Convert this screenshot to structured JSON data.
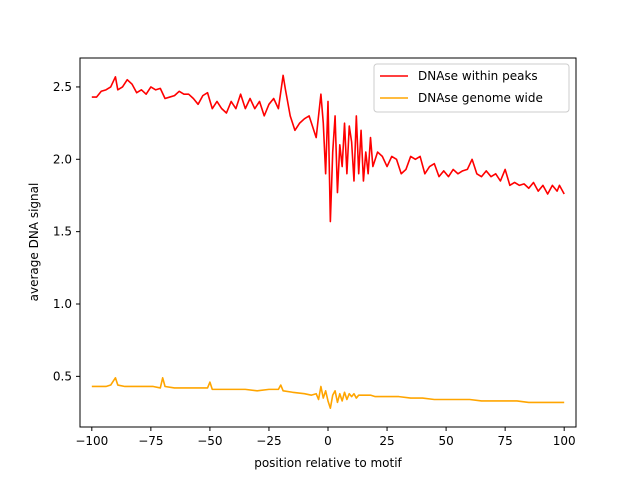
{
  "chart_data": {
    "type": "line",
    "title": "",
    "xlabel": "position relative to motif",
    "ylabel": "average DNA signal",
    "xlim": [
      -105,
      105
    ],
    "ylim": [
      0.15,
      2.7
    ],
    "xticks": [
      -100,
      -75,
      -50,
      -25,
      0,
      25,
      50,
      75,
      100
    ],
    "yticks": [
      0.5,
      1.0,
      1.5,
      2.0,
      2.5
    ],
    "xtick_labels": [
      "−100",
      "−75",
      "−50",
      "−25",
      "0",
      "25",
      "50",
      "75",
      "100"
    ],
    "ytick_labels": [
      "0.5",
      "1.0",
      "1.5",
      "2.0",
      "2.5"
    ],
    "grid": false,
    "legend_position": "top-right",
    "series": [
      {
        "name": "DNAse within peaks",
        "color": "#ff0000",
        "points": [
          [
            -100,
            2.43
          ],
          [
            -98,
            2.43
          ],
          [
            -96,
            2.47
          ],
          [
            -94,
            2.48
          ],
          [
            -92,
            2.5
          ],
          [
            -90,
            2.57
          ],
          [
            -89,
            2.48
          ],
          [
            -87,
            2.5
          ],
          [
            -85,
            2.55
          ],
          [
            -83,
            2.52
          ],
          [
            -81,
            2.46
          ],
          [
            -79,
            2.48
          ],
          [
            -77,
            2.45
          ],
          [
            -75,
            2.5
          ],
          [
            -73,
            2.48
          ],
          [
            -71,
            2.49
          ],
          [
            -69,
            2.42
          ],
          [
            -67,
            2.43
          ],
          [
            -65,
            2.44
          ],
          [
            -63,
            2.47
          ],
          [
            -61,
            2.45
          ],
          [
            -59,
            2.45
          ],
          [
            -57,
            2.42
          ],
          [
            -55,
            2.38
          ],
          [
            -53,
            2.44
          ],
          [
            -51,
            2.46
          ],
          [
            -49,
            2.35
          ],
          [
            -47,
            2.4
          ],
          [
            -45,
            2.35
          ],
          [
            -43,
            2.32
          ],
          [
            -41,
            2.4
          ],
          [
            -39,
            2.35
          ],
          [
            -37,
            2.45
          ],
          [
            -35,
            2.35
          ],
          [
            -33,
            2.42
          ],
          [
            -31,
            2.35
          ],
          [
            -29,
            2.4
          ],
          [
            -27,
            2.3
          ],
          [
            -25,
            2.38
          ],
          [
            -23,
            2.42
          ],
          [
            -21,
            2.35
          ],
          [
            -19,
            2.58
          ],
          [
            -18,
            2.48
          ],
          [
            -16,
            2.3
          ],
          [
            -14,
            2.2
          ],
          [
            -12,
            2.25
          ],
          [
            -10,
            2.28
          ],
          [
            -8,
            2.3
          ],
          [
            -6,
            2.2
          ],
          [
            -5,
            2.15
          ],
          [
            -3,
            2.45
          ],
          [
            -2,
            2.25
          ],
          [
            -1,
            1.9
          ],
          [
            0,
            2.4
          ],
          [
            1,
            1.57
          ],
          [
            2,
            2.05
          ],
          [
            3,
            2.3
          ],
          [
            4,
            1.77
          ],
          [
            5,
            2.1
          ],
          [
            6,
            1.95
          ],
          [
            7,
            2.25
          ],
          [
            8,
            1.9
          ],
          [
            9,
            2.23
          ],
          [
            10,
            2.12
          ],
          [
            11,
            1.85
          ],
          [
            12,
            2.3
          ],
          [
            13,
            1.9
          ],
          [
            14,
            2.2
          ],
          [
            15,
            1.85
          ],
          [
            16,
            2.05
          ],
          [
            17,
            1.9
          ],
          [
            18,
            2.15
          ],
          [
            19,
            1.95
          ],
          [
            21,
            2.05
          ],
          [
            23,
            2.02
          ],
          [
            25,
            1.95
          ],
          [
            27,
            2.02
          ],
          [
            29,
            2.0
          ],
          [
            31,
            1.9
          ],
          [
            33,
            1.93
          ],
          [
            35,
            2.02
          ],
          [
            37,
            2.0
          ],
          [
            39,
            2.02
          ],
          [
            41,
            1.9
          ],
          [
            43,
            1.95
          ],
          [
            45,
            1.97
          ],
          [
            47,
            1.88
          ],
          [
            49,
            1.92
          ],
          [
            51,
            1.88
          ],
          [
            53,
            1.93
          ],
          [
            55,
            1.9
          ],
          [
            57,
            1.92
          ],
          [
            59,
            1.93
          ],
          [
            61,
            2.0
          ],
          [
            63,
            1.9
          ],
          [
            65,
            1.88
          ],
          [
            67,
            1.92
          ],
          [
            69,
            1.88
          ],
          [
            71,
            1.9
          ],
          [
            73,
            1.85
          ],
          [
            75,
            1.93
          ],
          [
            77,
            1.82
          ],
          [
            79,
            1.84
          ],
          [
            81,
            1.82
          ],
          [
            83,
            1.83
          ],
          [
            85,
            1.8
          ],
          [
            87,
            1.84
          ],
          [
            89,
            1.78
          ],
          [
            91,
            1.82
          ],
          [
            93,
            1.76
          ],
          [
            95,
            1.82
          ],
          [
            97,
            1.78
          ],
          [
            98,
            1.82
          ],
          [
            100,
            1.76
          ]
        ]
      },
      {
        "name": "DNAse genome wide",
        "color": "#ffa500",
        "points": [
          [
            -100,
            0.43
          ],
          [
            -97,
            0.43
          ],
          [
            -94,
            0.43
          ],
          [
            -92,
            0.44
          ],
          [
            -90,
            0.49
          ],
          [
            -89,
            0.44
          ],
          [
            -86,
            0.43
          ],
          [
            -82,
            0.43
          ],
          [
            -78,
            0.43
          ],
          [
            -74,
            0.43
          ],
          [
            -71,
            0.42
          ],
          [
            -70,
            0.49
          ],
          [
            -69,
            0.43
          ],
          [
            -65,
            0.42
          ],
          [
            -60,
            0.42
          ],
          [
            -55,
            0.42
          ],
          [
            -51,
            0.42
          ],
          [
            -50,
            0.46
          ],
          [
            -49,
            0.41
          ],
          [
            -45,
            0.41
          ],
          [
            -40,
            0.41
          ],
          [
            -35,
            0.41
          ],
          [
            -30,
            0.4
          ],
          [
            -25,
            0.41
          ],
          [
            -21,
            0.41
          ],
          [
            -20,
            0.44
          ],
          [
            -19,
            0.4
          ],
          [
            -15,
            0.39
          ],
          [
            -10,
            0.38
          ],
          [
            -7,
            0.37
          ],
          [
            -5,
            0.38
          ],
          [
            -4,
            0.34
          ],
          [
            -3,
            0.43
          ],
          [
            -2,
            0.35
          ],
          [
            -1,
            0.4
          ],
          [
            0,
            0.33
          ],
          [
            1,
            0.28
          ],
          [
            2,
            0.37
          ],
          [
            3,
            0.4
          ],
          [
            4,
            0.32
          ],
          [
            5,
            0.38
          ],
          [
            6,
            0.33
          ],
          [
            7,
            0.39
          ],
          [
            8,
            0.34
          ],
          [
            9,
            0.38
          ],
          [
            10,
            0.36
          ],
          [
            11,
            0.38
          ],
          [
            12,
            0.35
          ],
          [
            13,
            0.37
          ],
          [
            15,
            0.37
          ],
          [
            18,
            0.37
          ],
          [
            20,
            0.36
          ],
          [
            25,
            0.36
          ],
          [
            30,
            0.36
          ],
          [
            35,
            0.35
          ],
          [
            40,
            0.35
          ],
          [
            45,
            0.34
          ],
          [
            50,
            0.34
          ],
          [
            55,
            0.34
          ],
          [
            60,
            0.34
          ],
          [
            65,
            0.33
          ],
          [
            70,
            0.33
          ],
          [
            75,
            0.33
          ],
          [
            80,
            0.33
          ],
          [
            85,
            0.32
          ],
          [
            90,
            0.32
          ],
          [
            95,
            0.32
          ],
          [
            100,
            0.32
          ]
        ]
      }
    ]
  }
}
